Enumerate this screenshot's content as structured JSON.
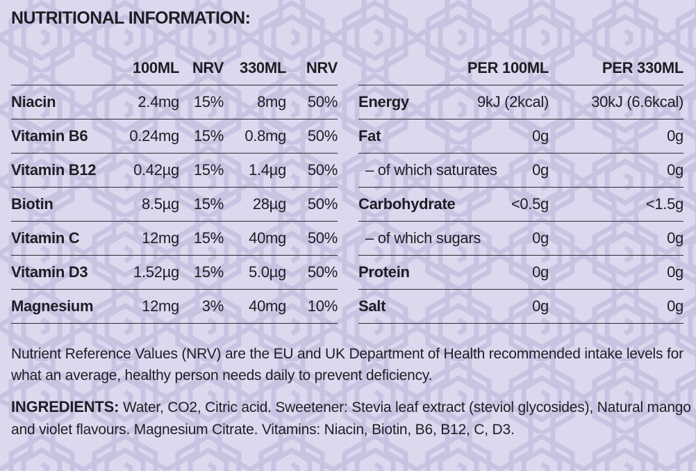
{
  "title": "NUTRITIONAL INFORMATION:",
  "vitamins": {
    "headers": [
      "",
      "100ML",
      "NRV",
      "330ML",
      "NRV"
    ],
    "rows": [
      [
        "Niacin",
        "2.4mg",
        "15%",
        "8mg",
        "50%"
      ],
      [
        "Vitamin B6",
        "0.24mg",
        "15%",
        "0.8mg",
        "50%"
      ],
      [
        "Vitamin B12",
        "0.42µg",
        "15%",
        "1.4µg",
        "50%"
      ],
      [
        "Biotin",
        "8.5µg",
        "15%",
        "28µg",
        "50%"
      ],
      [
        "Vitamin C",
        "12mg",
        "15%",
        "40mg",
        "50%"
      ],
      [
        "Vitamin D3",
        "1.52µg",
        "15%",
        "5.0µg",
        "50%"
      ],
      [
        "Magnesium",
        "12mg",
        "3%",
        "40mg",
        "10%"
      ]
    ]
  },
  "nutrition": {
    "headers": [
      "",
      "PER 100ML",
      "PER 330ML"
    ],
    "rows": [
      [
        "Energy",
        "9kJ (2kcal)",
        "30kJ (6.6kcal)"
      ],
      [
        "Fat",
        "0g",
        "0g"
      ],
      [
        "– of which saturates",
        "0g",
        "0g"
      ],
      [
        "Carbohydrate",
        "<0.5g",
        "<1.5g"
      ],
      [
        "– of which sugars",
        "0g",
        "0g"
      ],
      [
        "Protein",
        "0g",
        "0g"
      ],
      [
        "Salt",
        "0g",
        "0g"
      ]
    ]
  },
  "nrv_note": "Nutrient Reference Values (NRV) are the EU and UK Department of Health recommended intake levels for what an average, healthy person needs daily to prevent deficiency.",
  "ingredients": {
    "label": "INGREDIENTS:",
    "text": " Water, CO2, Citric acid. Sweetener: Stevia leaf extract (steviol glycosides), Natural mango and violet flavours. Magnesium Citrate. Vitamins: Niacin, Biotin, B6, B12, C, D3."
  },
  "colors": {
    "background": "#dcd8ee",
    "pattern": "#c9c3e2",
    "text": "#1f1d24",
    "rule": "#2c2a33"
  }
}
